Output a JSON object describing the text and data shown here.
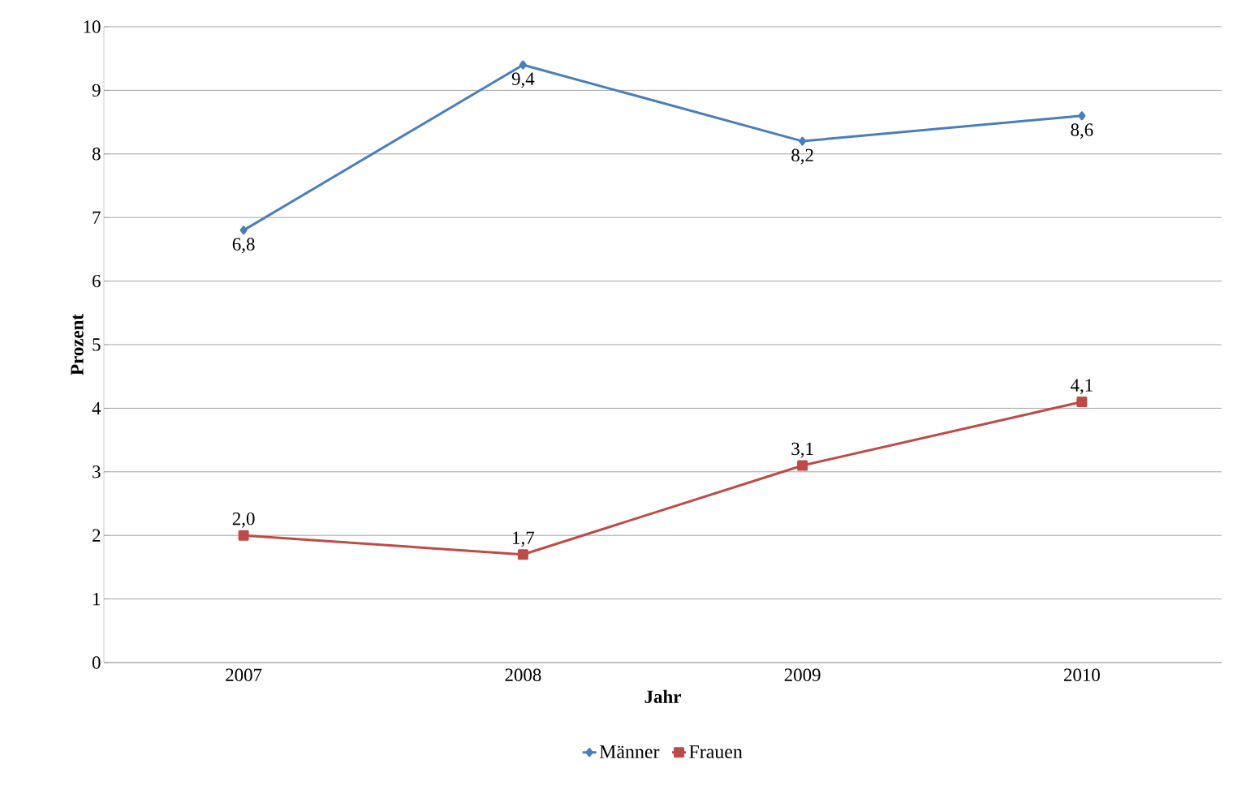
{
  "chart_data": {
    "type": "line",
    "xlabel": "Jahr",
    "ylabel": "Prozent",
    "categories": [
      "2007",
      "2008",
      "2009",
      "2010"
    ],
    "series": [
      {
        "name": "Männer",
        "color": "#4a7ebb",
        "marker": "diamond",
        "values": [
          6.8,
          9.4,
          8.2,
          8.6
        ],
        "value_labels": [
          "6,8",
          "9,4",
          "8,2",
          "8,6"
        ]
      },
      {
        "name": "Frauen",
        "color": "#be4b48",
        "marker": "square",
        "values": [
          2.0,
          1.7,
          3.1,
          4.1
        ],
        "value_labels": [
          "2,0",
          "1,7",
          "3,1",
          "4,1"
        ]
      }
    ],
    "ylim": [
      0,
      10
    ],
    "yticks": [
      0,
      1,
      2,
      3,
      4,
      5,
      6,
      7,
      8,
      9,
      10
    ],
    "grid": "y",
    "legend": "bottom"
  }
}
